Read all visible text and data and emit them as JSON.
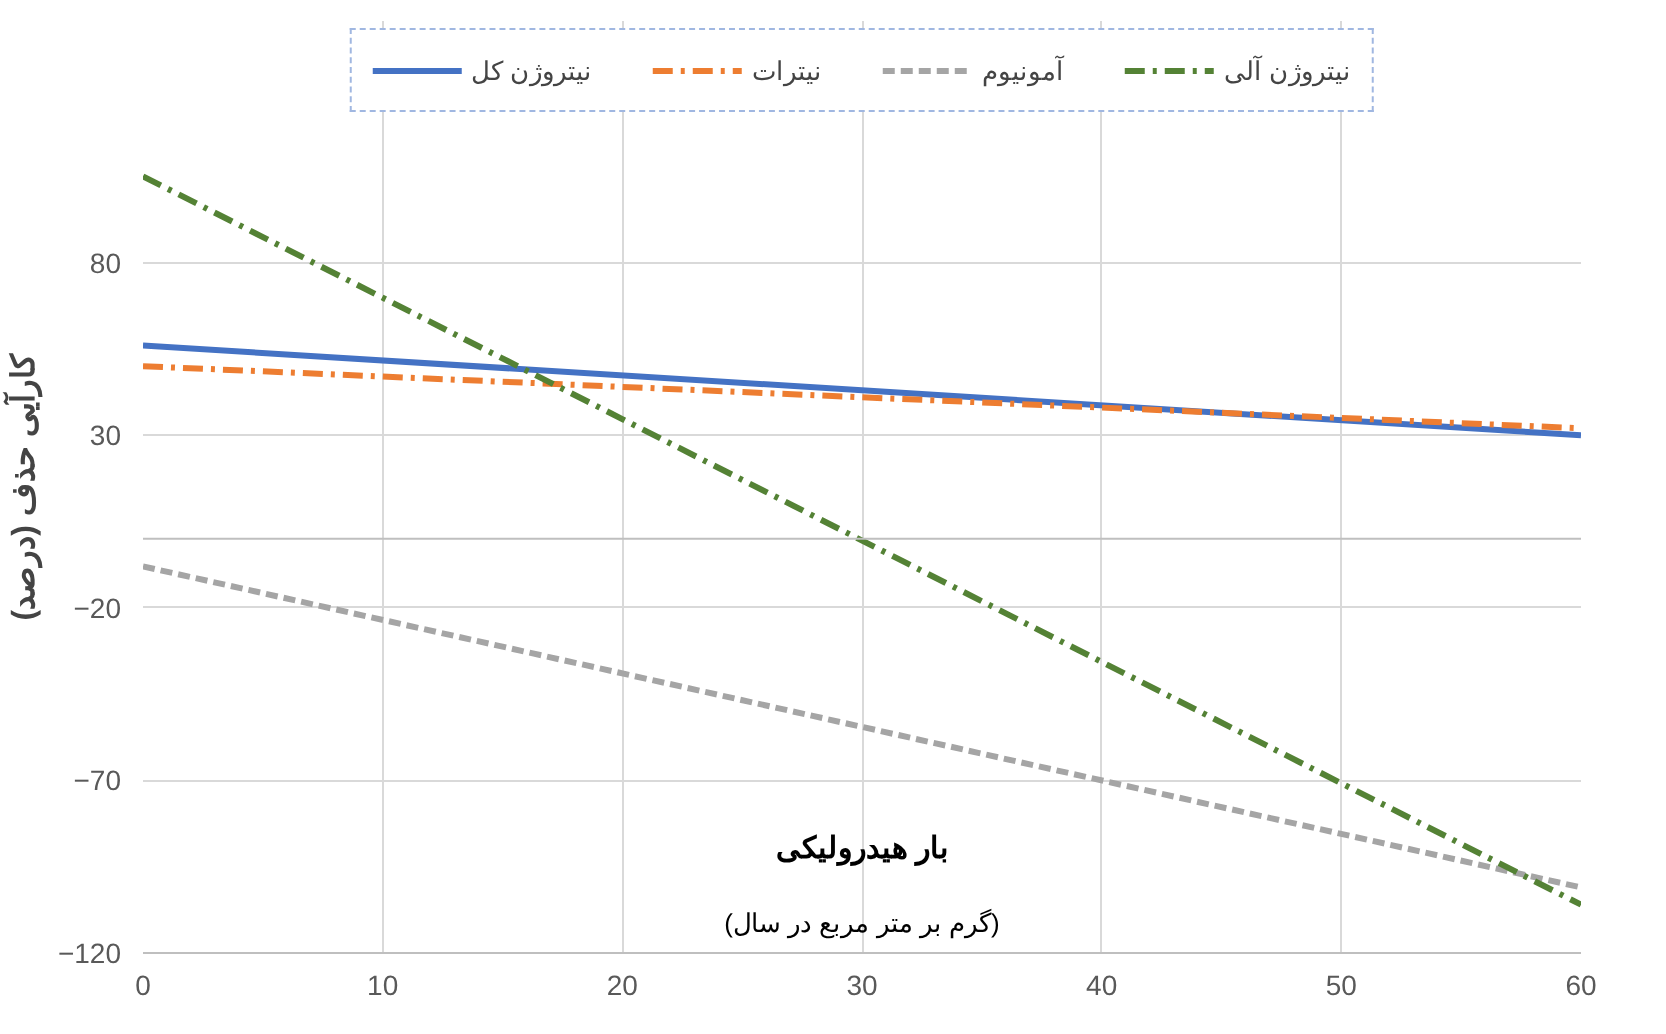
{
  "chart_data": {
    "type": "line",
    "xlabel": "بار هیدرولیکی\n(گرم بر متر مربع در سال)",
    "ylabel": "کارآیی حذف (درصد)",
    "x": [
      0,
      60
    ],
    "xlim": [
      0,
      60
    ],
    "xticks": [
      0,
      10,
      20,
      30,
      40,
      50,
      60
    ],
    "ylim": [
      -120,
      150
    ],
    "yticks": [
      -120,
      -70,
      -20,
      30,
      80
    ],
    "grid": true,
    "legend": "top",
    "marker": "none",
    "series": [
      {
        "name": "نیتروژن کل",
        "color": "#4472c4",
        "values": [
          56,
          30
        ],
        "line_style": "solid"
      },
      {
        "name": "نیترات",
        "color": "#ed7d31",
        "values": [
          50,
          32
        ],
        "line_style": "dashdot"
      },
      {
        "name": "آمونیوم",
        "color": "#a5a5a5",
        "values": [
          -8,
          -101
        ],
        "line_style": "dashed"
      },
      {
        "name": "نیتروژن آلی",
        "color": "#548235",
        "values": [
          105,
          -106
        ],
        "line_style": "dashdot"
      }
    ]
  }
}
